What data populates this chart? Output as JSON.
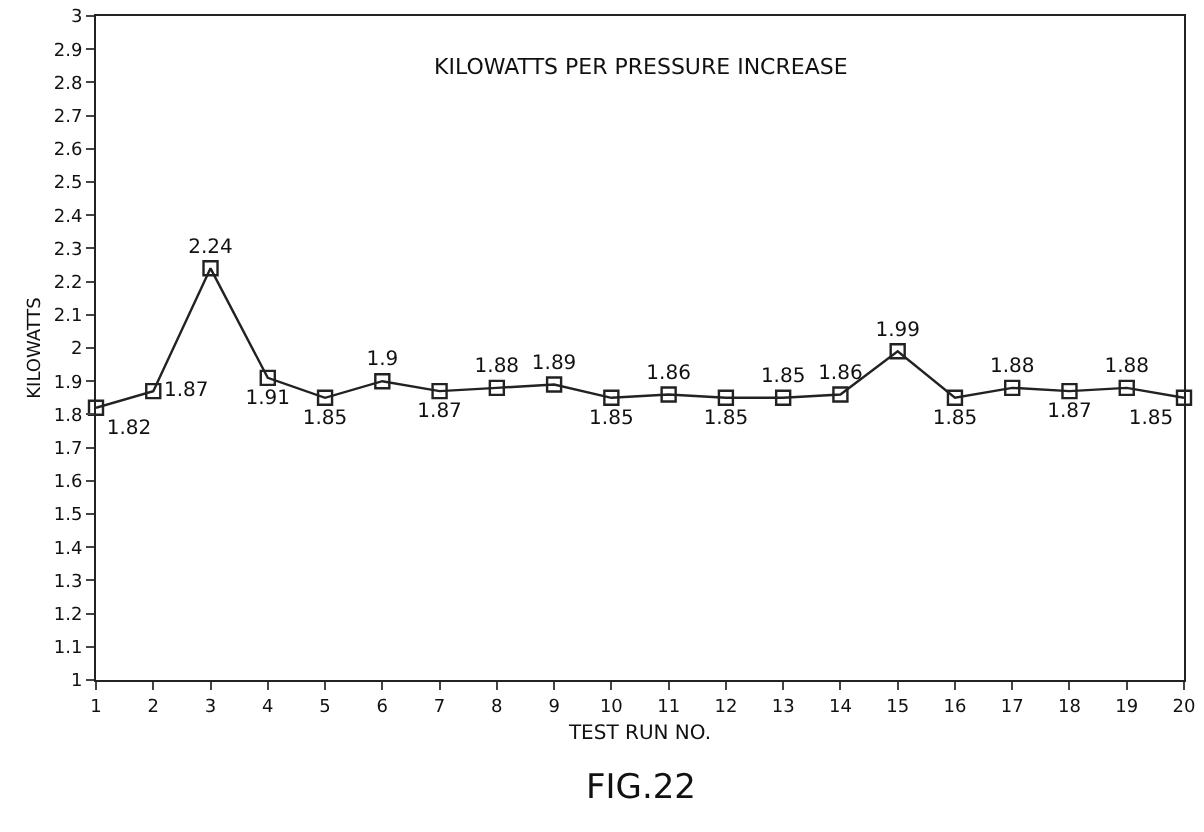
{
  "chart_data": {
    "type": "line",
    "title": "KILOWATTS PER PRESSURE INCREASE",
    "xlabel": "TEST RUN NO.",
    "ylabel": "KILOWATTS",
    "annotations": [
      "FIG.22"
    ],
    "x": [
      1,
      2,
      3,
      4,
      5,
      6,
      7,
      8,
      9,
      10,
      11,
      12,
      13,
      14,
      15,
      16,
      17,
      18,
      19,
      20
    ],
    "values": [
      1.82,
      1.87,
      2.24,
      1.91,
      1.85,
      1.9,
      1.87,
      1.88,
      1.89,
      1.85,
      1.86,
      1.85,
      1.85,
      1.86,
      1.99,
      1.85,
      1.88,
      1.87,
      1.88,
      1.85
    ],
    "color": "#222222",
    "marker": "square",
    "line_style": "solid",
    "data_labels": true,
    "grid": false,
    "legend": false,
    "xlim": [
      1,
      20
    ],
    "xticks": [
      1,
      2,
      3,
      4,
      5,
      6,
      7,
      8,
      9,
      10,
      11,
      12,
      13,
      14,
      15,
      16,
      17,
      18,
      19,
      20
    ],
    "ylim": [
      1,
      3
    ],
    "yticks": [
      1,
      1.1,
      1.2,
      1.3,
      1.4,
      1.5,
      1.6,
      1.7,
      1.8,
      1.9,
      2,
      2.1,
      2.2,
      2.3,
      2.4,
      2.5,
      2.6,
      2.7,
      2.8,
      2.9,
      3
    ]
  }
}
